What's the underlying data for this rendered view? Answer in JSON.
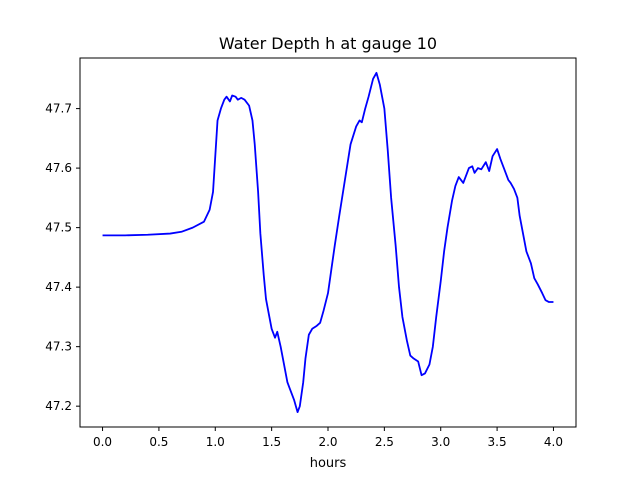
{
  "chart_data": {
    "type": "line",
    "title": "Water Depth h at gauge 10",
    "xlabel": "hours",
    "ylabel": "",
    "xlim": [
      -0.2,
      4.2
    ],
    "ylim": [
      47.165,
      47.785
    ],
    "xticks": [
      0.0,
      0.5,
      1.0,
      1.5,
      2.0,
      2.5,
      3.0,
      3.5,
      4.0
    ],
    "xtick_labels": [
      "0.0",
      "0.5",
      "1.0",
      "1.5",
      "2.0",
      "2.5",
      "3.0",
      "3.5",
      "4.0"
    ],
    "yticks": [
      47.2,
      47.3,
      47.4,
      47.5,
      47.6,
      47.7
    ],
    "ytick_labels": [
      "47.2",
      "47.3",
      "47.4",
      "47.5",
      "47.6",
      "47.7"
    ],
    "grid": false,
    "series": [
      {
        "color": "#0000ff",
        "x": [
          0.0,
          0.2,
          0.4,
          0.6,
          0.7,
          0.8,
          0.9,
          0.95,
          0.98,
          1.0,
          1.02,
          1.05,
          1.08,
          1.1,
          1.13,
          1.15,
          1.18,
          1.2,
          1.23,
          1.26,
          1.3,
          1.33,
          1.35,
          1.38,
          1.4,
          1.43,
          1.45,
          1.48,
          1.5,
          1.53,
          1.55,
          1.58,
          1.6,
          1.62,
          1.64,
          1.66,
          1.7,
          1.73,
          1.75,
          1.78,
          1.8,
          1.83,
          1.86,
          1.9,
          1.93,
          1.96,
          2.0,
          2.03,
          2.06,
          2.1,
          2.15,
          2.2,
          2.25,
          2.28,
          2.3,
          2.33,
          2.36,
          2.4,
          2.43,
          2.46,
          2.5,
          2.53,
          2.56,
          2.6,
          2.63,
          2.66,
          2.7,
          2.73,
          2.76,
          2.8,
          2.83,
          2.86,
          2.9,
          2.93,
          2.96,
          3.0,
          3.03,
          3.06,
          3.1,
          3.13,
          3.16,
          3.2,
          3.23,
          3.25,
          3.28,
          3.3,
          3.33,
          3.36,
          3.4,
          3.43,
          3.46,
          3.5,
          3.53,
          3.56,
          3.58,
          3.6,
          3.62,
          3.65,
          3.68,
          3.7,
          3.73,
          3.76,
          3.8,
          3.83,
          3.86,
          3.9,
          3.93,
          3.96,
          4.0
        ],
        "y": [
          47.487,
          47.487,
          47.488,
          47.49,
          47.493,
          47.5,
          47.51,
          47.53,
          47.56,
          47.62,
          47.68,
          47.7,
          47.715,
          47.72,
          47.712,
          47.722,
          47.72,
          47.715,
          47.718,
          47.715,
          47.705,
          47.68,
          47.64,
          47.56,
          47.49,
          47.42,
          47.38,
          47.35,
          47.33,
          47.315,
          47.325,
          47.3,
          47.28,
          47.26,
          47.24,
          47.23,
          47.21,
          47.19,
          47.2,
          47.24,
          47.28,
          47.32,
          47.33,
          47.335,
          47.34,
          47.36,
          47.39,
          47.43,
          47.47,
          47.52,
          47.58,
          47.64,
          47.67,
          47.68,
          47.677,
          47.7,
          47.72,
          47.75,
          47.76,
          47.74,
          47.7,
          47.63,
          47.55,
          47.47,
          47.4,
          47.35,
          47.31,
          47.285,
          47.28,
          47.275,
          47.252,
          47.255,
          47.27,
          47.3,
          47.35,
          47.41,
          47.46,
          47.5,
          47.545,
          47.57,
          47.585,
          47.575,
          47.59,
          47.6,
          47.603,
          47.592,
          47.6,
          47.598,
          47.61,
          47.595,
          47.62,
          47.632,
          47.615,
          47.6,
          47.59,
          47.58,
          47.575,
          47.565,
          47.55,
          47.52,
          47.49,
          47.46,
          47.44,
          47.415,
          47.405,
          47.39,
          47.378,
          47.375,
          47.375
        ]
      }
    ]
  }
}
